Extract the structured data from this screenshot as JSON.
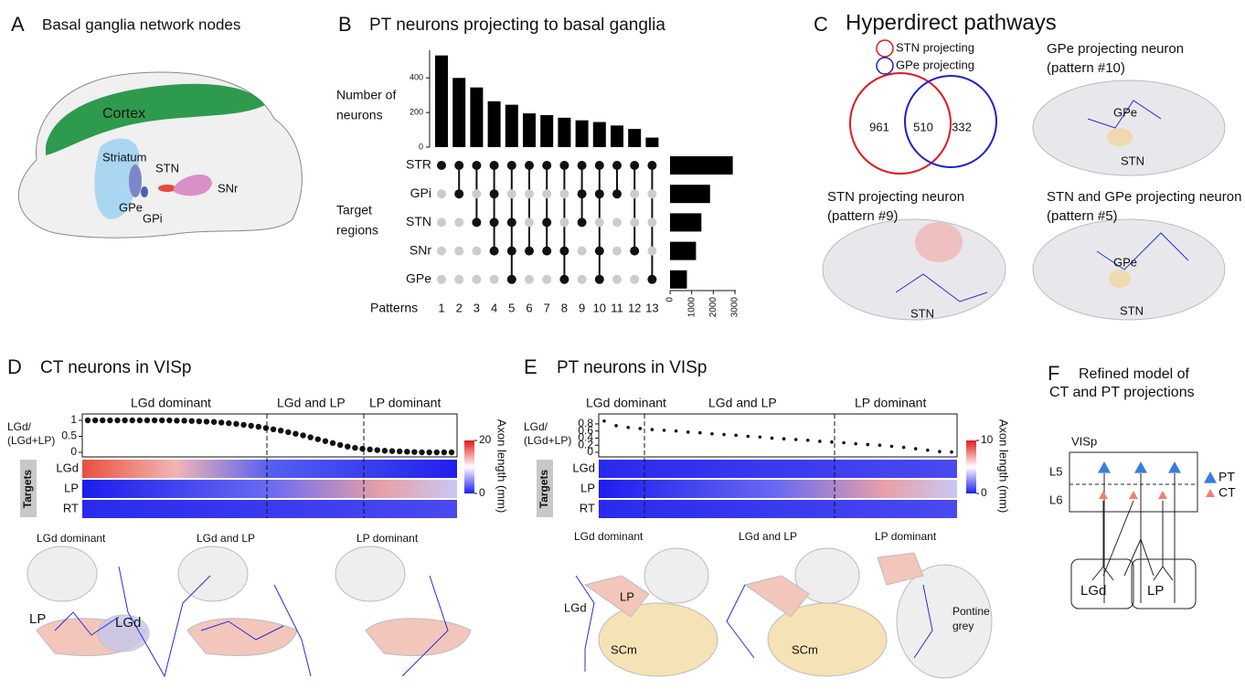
{
  "panels": {
    "a": {
      "letter": "A",
      "title": "Basal ganglia network nodes",
      "labels": {
        "cortex": "Cortex",
        "striatum": "Striatum",
        "stn": "STN",
        "snr": "SNr",
        "gpe": "GPe",
        "gpi": "GPi"
      }
    },
    "b": {
      "letter": "B",
      "title": "PT neurons projecting to basal ganglia",
      "count_label": [
        "Number of",
        "neurons"
      ],
      "count_ylim": [
        0,
        560
      ],
      "count_yticks": [
        0,
        200,
        400
      ],
      "pattern_counts": [
        530,
        400,
        345,
        265,
        245,
        195,
        185,
        170,
        155,
        145,
        125,
        105,
        55
      ],
      "regions": [
        "STR",
        "GPi",
        "STN",
        "SNr",
        "GPe"
      ],
      "region_label": [
        "Target",
        "regions"
      ],
      "membership": [
        [
          "STR"
        ],
        [
          "STR",
          "GPi"
        ],
        [
          "STR",
          "STN"
        ],
        [
          "STR",
          "GPi",
          "STN",
          "SNr"
        ],
        [
          "STR",
          "STN",
          "SNr",
          "GPe"
        ],
        [
          "STR",
          "SNr"
        ],
        [
          "STR",
          "STN",
          "SNr"
        ],
        [
          "STR",
          "SNr",
          "GPe"
        ],
        [
          "STR",
          "GPi",
          "STN"
        ],
        [
          "STR",
          "GPi",
          "SNr",
          "GPe"
        ],
        [
          "STR",
          "GPi"
        ],
        [
          "STR",
          "SNr"
        ],
        [
          "STR",
          "GPe"
        ]
      ],
      "patterns_label": "Patterns",
      "patterns": [
        "1",
        "2",
        "3",
        "4",
        "5",
        "6",
        "7",
        "8",
        "9",
        "10",
        "11",
        "12",
        "13"
      ],
      "region_totals": [
        2900,
        1850,
        1450,
        1200,
        780
      ],
      "total_xlim": [
        0,
        3000
      ],
      "total_xticks": [
        0,
        1000,
        2000,
        3000
      ],
      "color": "#000000"
    },
    "c": {
      "letter": "C",
      "title": "Hyperdirect pathways",
      "legend": [
        {
          "name": "STN projecting",
          "color": "#e3191c"
        },
        {
          "name": "GPe projecting",
          "color": "#1f1fd0"
        }
      ],
      "venn": [
        "961",
        "510",
        "332"
      ],
      "gpe_neuron": [
        "GPe projecting neuron",
        "(pattern #10)"
      ],
      "stn_neuron": [
        "STN projecting neuron",
        "(pattern #9)"
      ],
      "both_neuron": [
        "STN and GPe projecting neuron",
        "(pattern #5)"
      ],
      "markers": [
        "GPe",
        "STN",
        "STN",
        "GPe",
        "STN"
      ]
    },
    "d": {
      "letter": "D",
      "title": "CT neurons in VISp",
      "groups": [
        "LGd dominant",
        "LGd and LP",
        "LP dominant"
      ],
      "ratio_label": [
        "LGd/",
        "(LGd+LP)"
      ],
      "ylim": [
        0,
        1
      ],
      "yticks": [
        0,
        0.5,
        1
      ],
      "ratios": [
        1,
        1,
        1,
        1,
        1,
        1,
        1,
        1,
        1,
        1,
        1,
        1,
        0.99,
        0.99,
        0.98,
        0.97,
        0.96,
        0.95,
        0.93,
        0.91,
        0.89,
        0.86,
        0.83,
        0.8,
        0.76,
        0.72,
        0.68,
        0.63,
        0.58,
        0.53,
        0.47,
        0.41,
        0.35,
        0.29,
        0.23,
        0.18,
        0.14,
        0.11,
        0.09,
        0.07,
        0.05,
        0.04,
        0.03,
        0.02,
        0.01,
        0,
        0,
        0,
        0,
        0
      ],
      "targets_label": "Targets",
      "rows": [
        "LGd",
        "LP",
        "RT"
      ],
      "colorbar_label": "Axon length (mm)",
      "colorbar_ticks": [
        0,
        20
      ],
      "examples": [
        "LGd dominant",
        "LGd and LP",
        "LP dominant"
      ],
      "regions": [
        "LP",
        "LGd"
      ]
    },
    "e": {
      "letter": "E",
      "title": "PT neurons in VISp",
      "groups": [
        "LGd dominant",
        "LGd and LP",
        "LP dominant"
      ],
      "ratio_label": [
        "LGd/",
        "(LGd+LP)"
      ],
      "ylim": [
        0,
        0.9
      ],
      "yticks": [
        0,
        0.2,
        0.4,
        0.6,
        0.8
      ],
      "ratios": [
        0.88,
        0.75,
        0.7,
        0.67,
        0.64,
        0.62,
        0.6,
        0.57,
        0.55,
        0.52,
        0.5,
        0.48,
        0.45,
        0.43,
        0.4,
        0.38,
        0.36,
        0.34,
        0.31,
        0.29,
        0.27,
        0.24,
        0.22,
        0.2,
        0.17,
        0.14,
        0.1,
        0.06,
        0.02,
        0.01
      ],
      "targets_label": "Targets",
      "rows": [
        "LGd",
        "LP",
        "RT"
      ],
      "colorbar_label": "Axon length (mm)",
      "colorbar_ticks": [
        0,
        10
      ],
      "examples": [
        "LGd dominant",
        "LGd and LP",
        "LP dominant"
      ],
      "regions": [
        "LGd",
        "LP",
        "SCm",
        "SCm"
      ],
      "pontine": [
        "Pontine",
        "grey"
      ]
    },
    "f": {
      "letter": "F",
      "title": [
        "Refined model of",
        "CT and PT projections"
      ],
      "area": "VISp",
      "layers": [
        "L5",
        "L6"
      ],
      "legend": [
        "PT",
        "CT"
      ],
      "targets": [
        "LGd",
        "LP"
      ]
    }
  }
}
